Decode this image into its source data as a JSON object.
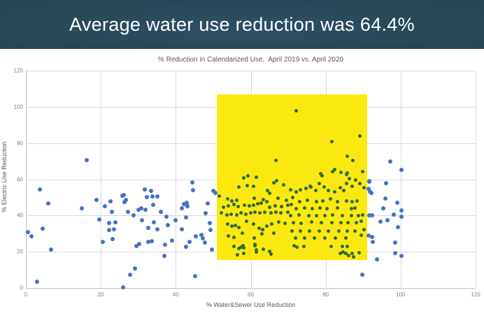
{
  "header": {
    "title": "Average water use reduction was 64.4%",
    "background_color": "#254350",
    "text_color": "#ffffff"
  },
  "chart_data": {
    "type": "scatter",
    "title": "% Reduction in Calendarized Use,  April 2019 vs. April 2020",
    "xlabel": "% Water&Sewer Use Reduction",
    "ylabel": "% Electric Use Reduction",
    "xlim": [
      0,
      120
    ],
    "ylim": [
      0,
      120
    ],
    "x_ticks": [
      0,
      20,
      40,
      60,
      80,
      100,
      120
    ],
    "y_ticks": [
      0,
      20,
      40,
      60,
      80,
      100,
      120
    ],
    "grid": true,
    "gridline_color": "#d9d9d9",
    "highlight_box": {
      "x1": 51,
      "x2": 91,
      "y1": 15.5,
      "y2": 107,
      "color": "#fce811"
    },
    "series": [
      {
        "name": "outside-highlight",
        "color": "#4472c4",
        "marker_size": 6,
        "points": [
          [
            0.6,
            31
          ],
          [
            1.5,
            28.6
          ],
          [
            2.9,
            3.5
          ],
          [
            3.7,
            54.5
          ],
          [
            4.5,
            32.9
          ],
          [
            6,
            46.7
          ],
          [
            6.7,
            21.2
          ],
          [
            14.9,
            43.9
          ],
          [
            16.2,
            70.6
          ],
          [
            18.9,
            48.6
          ],
          [
            19.6,
            38
          ],
          [
            20.5,
            25.5
          ],
          [
            21.1,
            45.2
          ],
          [
            22.2,
            35.7
          ],
          [
            22.3,
            32.2
          ],
          [
            22.5,
            47.8
          ],
          [
            23,
            42
          ],
          [
            23.1,
            27.1
          ],
          [
            23.6,
            32.5
          ],
          [
            23.9,
            36.1
          ],
          [
            25.8,
            51.1
          ],
          [
            26,
            0.5
          ],
          [
            26.2,
            51.4
          ],
          [
            26.4,
            47.5
          ],
          [
            26.6,
            48.6
          ],
          [
            27.3,
            42
          ],
          [
            27.8,
            7.3
          ],
          [
            28.7,
            40
          ],
          [
            29.2,
            10.8
          ],
          [
            29.5,
            23.1
          ],
          [
            30.1,
            43.1
          ],
          [
            30.3,
            24.3
          ],
          [
            30.7,
            43.9
          ],
          [
            30.9,
            37.6
          ],
          [
            31.7,
            54.5
          ],
          [
            31.9,
            43.1
          ],
          [
            32.3,
            50.2
          ],
          [
            32.6,
            33.3
          ],
          [
            32.7,
            25.5
          ],
          [
            33.4,
            53.7
          ],
          [
            33.5,
            25.9
          ],
          [
            33.7,
            50.6
          ],
          [
            34,
            45.9
          ],
          [
            34.2,
            36.1
          ],
          [
            35,
            50.6
          ],
          [
            35.1,
            32.5
          ],
          [
            36,
            42
          ],
          [
            37,
            17.6
          ],
          [
            37.1,
            23.9
          ],
          [
            37.6,
            39.2
          ],
          [
            37.9,
            34.9
          ],
          [
            39,
            26.3
          ],
          [
            39.9,
            37.3
          ],
          [
            41.6,
            43.9
          ],
          [
            41.7,
            32.5
          ],
          [
            42.2,
            46.3
          ],
          [
            42.7,
            38.8
          ],
          [
            42.8,
            22.7
          ],
          [
            43,
            47.1
          ],
          [
            43.2,
            45.1
          ],
          [
            43.6,
            25.5
          ],
          [
            44.4,
            58.4
          ],
          [
            44.6,
            54.1
          ],
          [
            45.2,
            6.7
          ],
          [
            45.4,
            28.6
          ],
          [
            46.9,
            29.4
          ],
          [
            47.2,
            27.5
          ],
          [
            47.8,
            25.1
          ],
          [
            48,
            41.2
          ],
          [
            48.5,
            46.7
          ],
          [
            49,
            35.7
          ],
          [
            49.3,
            32.2
          ],
          [
            49.7,
            21.4
          ],
          [
            50,
            53.7
          ],
          [
            50.5,
            52.5
          ],
          [
            89.8,
            7.3
          ],
          [
            91.4,
            54.6
          ],
          [
            91.4,
            28.9
          ],
          [
            91.6,
            59.2
          ],
          [
            91.7,
            58.7
          ],
          [
            91.7,
            40
          ],
          [
            91.8,
            53.3
          ],
          [
            92.2,
            52.4
          ],
          [
            92.3,
            40
          ],
          [
            92.3,
            28.2
          ],
          [
            92.6,
            25.4
          ],
          [
            93.6,
            15.8
          ],
          [
            94.7,
            36.7
          ],
          [
            95.4,
            43.9
          ],
          [
            95.9,
            49.4
          ],
          [
            96.2,
            58
          ],
          [
            96.4,
            37.6
          ],
          [
            97.3,
            69.7
          ],
          [
            98.2,
            40.4
          ],
          [
            98.6,
            25
          ],
          [
            98.6,
            19.1
          ],
          [
            99.1,
            46.9
          ],
          [
            99.2,
            33.5
          ],
          [
            100.3,
            65.2
          ],
          [
            100.3,
            43
          ],
          [
            100.3,
            39.3
          ],
          [
            100.3,
            17.8
          ]
        ]
      },
      {
        "name": "inside-highlight",
        "color": "#2e6b2e",
        "marker_size": 5,
        "points": [
          [
            72.2,
            98
          ],
          [
            89.2,
            83.8
          ],
          [
            81.6,
            80.9
          ],
          [
            85.8,
            72.7
          ],
          [
            87.2,
            70.5
          ],
          [
            66.8,
            70.5
          ],
          [
            82.4,
            65.5
          ],
          [
            89.8,
            64.4
          ],
          [
            78.6,
            62.9
          ],
          [
            81.9,
            64.4
          ],
          [
            84.1,
            63.9
          ],
          [
            85.8,
            63.5
          ],
          [
            59.2,
            62
          ],
          [
            61.5,
            61.3
          ],
          [
            58.1,
            60.9
          ],
          [
            79.1,
            62
          ],
          [
            85.5,
            62.6
          ],
          [
            86.4,
            60.5
          ],
          [
            88,
            59.8
          ],
          [
            66.9,
            59.2
          ],
          [
            56.9,
            55.7
          ],
          [
            59,
            56.6
          ],
          [
            60.7,
            56
          ],
          [
            66.1,
            57.9
          ],
          [
            68.7,
            57
          ],
          [
            70.6,
            54.4
          ],
          [
            72.1,
            53.1
          ],
          [
            73.3,
            54.4
          ],
          [
            74.8,
            55
          ],
          [
            76.1,
            55.7
          ],
          [
            77.4,
            53.7
          ],
          [
            79.6,
            55.7
          ],
          [
            80.8,
            54
          ],
          [
            82.4,
            53.1
          ],
          [
            83.9,
            55.3
          ],
          [
            84.9,
            54
          ],
          [
            85.5,
            57.6
          ],
          [
            87,
            56.3
          ],
          [
            89.2,
            57.6
          ],
          [
            90.2,
            55.4
          ],
          [
            78.3,
            57.6
          ],
          [
            75.8,
            56.3
          ],
          [
            64.5,
            54
          ],
          [
            65,
            52.2
          ],
          [
            51.6,
            50.7
          ],
          [
            53.9,
            49.1
          ],
          [
            55,
            48.2
          ],
          [
            56.3,
            48.5
          ],
          [
            61,
            49.4
          ],
          [
            63.4,
            48.8
          ],
          [
            67.3,
            49.6
          ],
          [
            69.6,
            48.5
          ],
          [
            71.2,
            50
          ],
          [
            73,
            47.8
          ],
          [
            75.2,
            48.3
          ],
          [
            77.5,
            47.6
          ],
          [
            79.3,
            48.1
          ],
          [
            81.2,
            49.2
          ],
          [
            83.1,
            47.8
          ],
          [
            85.5,
            48.2
          ],
          [
            87,
            47.5
          ],
          [
            88.3,
            48
          ],
          [
            52.8,
            44.6
          ],
          [
            54.1,
            45.2
          ],
          [
            55.6,
            46.1
          ],
          [
            56.7,
            44.8
          ],
          [
            58.4,
            45.9
          ],
          [
            59.7,
            45.2
          ],
          [
            60.7,
            45.9
          ],
          [
            61.8,
            46.5
          ],
          [
            62.8,
            46.9
          ],
          [
            64.3,
            47.8
          ],
          [
            65,
            44.6
          ],
          [
            66.5,
            45.5
          ],
          [
            68.2,
            44.9
          ],
          [
            69.9,
            45.8
          ],
          [
            70.8,
            46.3
          ],
          [
            72.1,
            43.9
          ],
          [
            74.3,
            44.3
          ],
          [
            76.5,
            43.7
          ],
          [
            78.4,
            44.1
          ],
          [
            80.4,
            43.9
          ],
          [
            83.2,
            44.2
          ],
          [
            86.8,
            43.8
          ],
          [
            87.9,
            44
          ],
          [
            52.2,
            41.3
          ],
          [
            53.6,
            40.4
          ],
          [
            54.7,
            40.9
          ],
          [
            56.3,
            40.4
          ],
          [
            57.4,
            41.3
          ],
          [
            58.7,
            40.9
          ],
          [
            60,
            41.3
          ],
          [
            61.2,
            41.7
          ],
          [
            62.5,
            41.3
          ],
          [
            63.8,
            42
          ],
          [
            65.5,
            41.3
          ],
          [
            66.7,
            42
          ],
          [
            68.1,
            41.3
          ],
          [
            69.8,
            42
          ],
          [
            70.6,
            40
          ],
          [
            72.9,
            40.2
          ],
          [
            75.4,
            39.8
          ],
          [
            77.6,
            40.1
          ],
          [
            79.7,
            39.9
          ],
          [
            81.9,
            40.2
          ],
          [
            84.4,
            39.8
          ],
          [
            86.9,
            40
          ],
          [
            88.8,
            40.1
          ],
          [
            89.8,
            40.3
          ],
          [
            53.8,
            35.2
          ],
          [
            55,
            34.1
          ],
          [
            55.9,
            34.4
          ],
          [
            56.9,
            33.5
          ],
          [
            58.8,
            36.9
          ],
          [
            60.7,
            35.2
          ],
          [
            62.2,
            32.8
          ],
          [
            63.2,
            32.2
          ],
          [
            64.3,
            34.1
          ],
          [
            65.6,
            35.2
          ],
          [
            67.4,
            36.5
          ],
          [
            69.2,
            35.5
          ],
          [
            71.3,
            36.1
          ],
          [
            73.5,
            35.8
          ],
          [
            76.3,
            36.3
          ],
          [
            78.8,
            36
          ],
          [
            81.6,
            35.9
          ],
          [
            84.1,
            36.2
          ],
          [
            86,
            36
          ],
          [
            88.2,
            36.1
          ],
          [
            89.5,
            36.7
          ],
          [
            54.1,
            28.9
          ],
          [
            55.6,
            27.8
          ],
          [
            57.7,
            30.2
          ],
          [
            60.9,
            27.6
          ],
          [
            62.9,
            29.8
          ],
          [
            66.1,
            30.4
          ],
          [
            71,
            31.5
          ],
          [
            73.2,
            31.3
          ],
          [
            75.7,
            31.6
          ],
          [
            78.2,
            31.4
          ],
          [
            80.7,
            31.5
          ],
          [
            83.5,
            31.6
          ],
          [
            85.7,
            31.4
          ],
          [
            87.9,
            31.5
          ],
          [
            90.3,
            32.4
          ],
          [
            71.9,
            27.6
          ],
          [
            74.4,
            27.4
          ],
          [
            76.9,
            27.7
          ],
          [
            79.7,
            27.5
          ],
          [
            82.5,
            27.6
          ],
          [
            85.3,
            27.7
          ],
          [
            89.5,
            29.3
          ],
          [
            55.6,
            23
          ],
          [
            56.9,
            21.7
          ],
          [
            58.1,
            22.1
          ],
          [
            56.4,
            18.2
          ],
          [
            58.1,
            19.1
          ],
          [
            61.2,
            23.3
          ],
          [
            61.5,
            19.7
          ],
          [
            63.3,
            21.5
          ],
          [
            65.5,
            18.8
          ],
          [
            72.4,
            22.7
          ],
          [
            81.4,
            23
          ],
          [
            84.7,
            19.7
          ],
          [
            86.1,
            18
          ],
          [
            87.5,
            17.1
          ],
          [
            88.9,
            19.3
          ],
          [
            71.6,
            23.2
          ],
          [
            74.1,
            22.9
          ],
          [
            84.4,
            23.1
          ],
          [
            85.7,
            22.8
          ],
          [
            83.8,
            19.1
          ],
          [
            85.4,
            19
          ],
          [
            87,
            19.2
          ],
          [
            61.5,
            21
          ],
          [
            65,
            20.4
          ],
          [
            57.4,
            22.6
          ],
          [
            58,
            23.4
          ],
          [
            61.2,
            24.3
          ]
        ]
      }
    ]
  }
}
